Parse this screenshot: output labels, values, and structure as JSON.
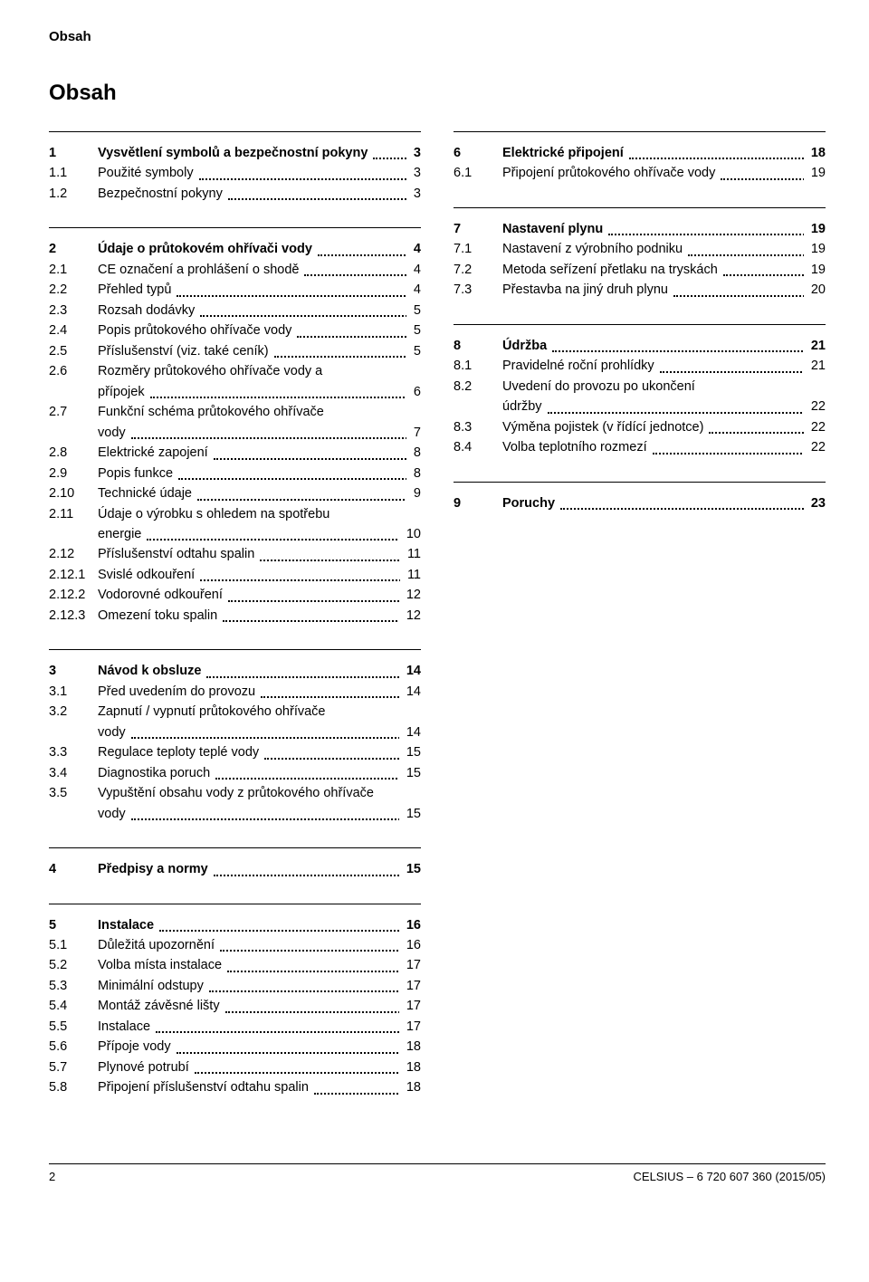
{
  "running_head": "Obsah",
  "page_title": "Obsah",
  "footer": {
    "page_number": "2",
    "doc_id": "CELSIUS – 6 720 607 360 (2015/05)"
  },
  "sections": [
    {
      "head": {
        "num": "1",
        "title": "Vysvětlení symbolů a bezpečnostní pokyny",
        "page": "3"
      },
      "items": [
        {
          "num": "1.1",
          "title": "Použité symboly",
          "page": "3"
        },
        {
          "num": "1.2",
          "title": "Bezpečnostní pokyny",
          "page": "3"
        }
      ]
    },
    {
      "head": {
        "num": "2",
        "title": "Údaje o průtokovém ohřívači vody",
        "page": "4"
      },
      "items": [
        {
          "num": "2.1",
          "title": "CE označení a prohlášení o shodě",
          "page": "4"
        },
        {
          "num": "2.2",
          "title": "Přehled typů",
          "page": "4"
        },
        {
          "num": "2.3",
          "title": "Rozsah dodávky",
          "page": "5"
        },
        {
          "num": "2.4",
          "title": "Popis průtokového ohřívače vody",
          "page": "5"
        },
        {
          "num": "2.5",
          "title": "Příslušenství (viz. také ceník)",
          "page": "5"
        },
        {
          "num": "2.6",
          "title": "Rozměry průtokového ohřívače vody a",
          "page": ""
        },
        {
          "num": "",
          "title": "přípojek",
          "page": "6"
        },
        {
          "num": "2.7",
          "title": "Funkční schéma průtokového ohřívače",
          "page": ""
        },
        {
          "num": "",
          "title": "vody",
          "page": "7"
        },
        {
          "num": "2.8",
          "title": "Elektrické zapojení",
          "page": "8"
        },
        {
          "num": "2.9",
          "title": "Popis funkce",
          "page": "8"
        },
        {
          "num": "2.10",
          "title": "Technické údaje",
          "page": "9"
        },
        {
          "num": "2.11",
          "title": "Údaje o výrobku s ohledem na spotřebu",
          "page": ""
        },
        {
          "num": "",
          "title": "energie",
          "page": "10"
        },
        {
          "num": "2.12",
          "title": "Příslušenství odtahu spalin",
          "page": "11"
        },
        {
          "num": "2.12.1",
          "title": "Svislé odkouření",
          "page": "11"
        },
        {
          "num": "2.12.2",
          "title": "Vodorovné odkouření",
          "page": "12"
        },
        {
          "num": "2.12.3",
          "title": "Omezení toku spalin",
          "page": "12"
        }
      ]
    },
    {
      "head": {
        "num": "3",
        "title": "Návod k obsluze",
        "page": "14"
      },
      "items": [
        {
          "num": "3.1",
          "title": "Před uvedením do provozu",
          "page": "14"
        },
        {
          "num": "3.2",
          "title": "Zapnutí / vypnutí průtokového ohřívače",
          "page": ""
        },
        {
          "num": "",
          "title": "vody",
          "page": "14"
        },
        {
          "num": "3.3",
          "title": "Regulace teploty teplé vody",
          "page": "15"
        },
        {
          "num": "3.4",
          "title": "Diagnostika poruch",
          "page": "15"
        },
        {
          "num": "3.5",
          "title": "Vypuštění obsahu vody z průtokového ohřívače",
          "page": ""
        },
        {
          "num": "",
          "title": "vody",
          "page": "15"
        }
      ]
    },
    {
      "head": {
        "num": "4",
        "title": "Předpisy a normy",
        "page": "15"
      },
      "items": []
    },
    {
      "head": {
        "num": "5",
        "title": "Instalace",
        "page": "16"
      },
      "items": [
        {
          "num": "5.1",
          "title": "Důležitá upozornění",
          "page": "16"
        },
        {
          "num": "5.2",
          "title": "Volba místa instalace",
          "page": "17"
        },
        {
          "num": "5.3",
          "title": "Minimální odstupy",
          "page": "17"
        },
        {
          "num": "5.4",
          "title": "Montáž závěsné lišty",
          "page": "17"
        },
        {
          "num": "5.5",
          "title": "Instalace",
          "page": "17"
        },
        {
          "num": "5.6",
          "title": "Přípoje vody",
          "page": "18"
        },
        {
          "num": "5.7",
          "title": "Plynové potrubí",
          "page": "18"
        },
        {
          "num": "5.8",
          "title": "Připojení příslušenství odtahu spalin",
          "page": "18"
        }
      ]
    },
    {
      "head": {
        "num": "6",
        "title": "Elektrické připojení",
        "page": "18"
      },
      "items": [
        {
          "num": "6.1",
          "title": "Připojení průtokového ohřívače vody",
          "page": "19"
        }
      ]
    },
    {
      "head": {
        "num": "7",
        "title": "Nastavení plynu",
        "page": "19"
      },
      "items": [
        {
          "num": "7.1",
          "title": "Nastavení z výrobního podniku",
          "page": "19"
        },
        {
          "num": "7.2",
          "title": "Metoda seřízení přetlaku na tryskách",
          "page": "19"
        },
        {
          "num": "7.3",
          "title": "Přestavba na jiný druh plynu",
          "page": "20"
        }
      ]
    },
    {
      "head": {
        "num": "8",
        "title": "Údržba",
        "page": "21"
      },
      "items": [
        {
          "num": "8.1",
          "title": "Pravidelné roční prohlídky",
          "page": "21"
        },
        {
          "num": "8.2",
          "title": "Uvedení do provozu po ukončení",
          "page": ""
        },
        {
          "num": "",
          "title": "údržby",
          "page": "22"
        },
        {
          "num": "8.3",
          "title": "Výměna pojistek (v řídící jednotce)",
          "page": "22"
        },
        {
          "num": "8.4",
          "title": "Volba teplotního rozmezí",
          "page": "22"
        }
      ]
    },
    {
      "head": {
        "num": "9",
        "title": "Poruchy",
        "page": "23"
      },
      "items": []
    }
  ],
  "left_sections": [
    0,
    1,
    2,
    3,
    4
  ],
  "right_sections": [
    5,
    6,
    7,
    8
  ]
}
